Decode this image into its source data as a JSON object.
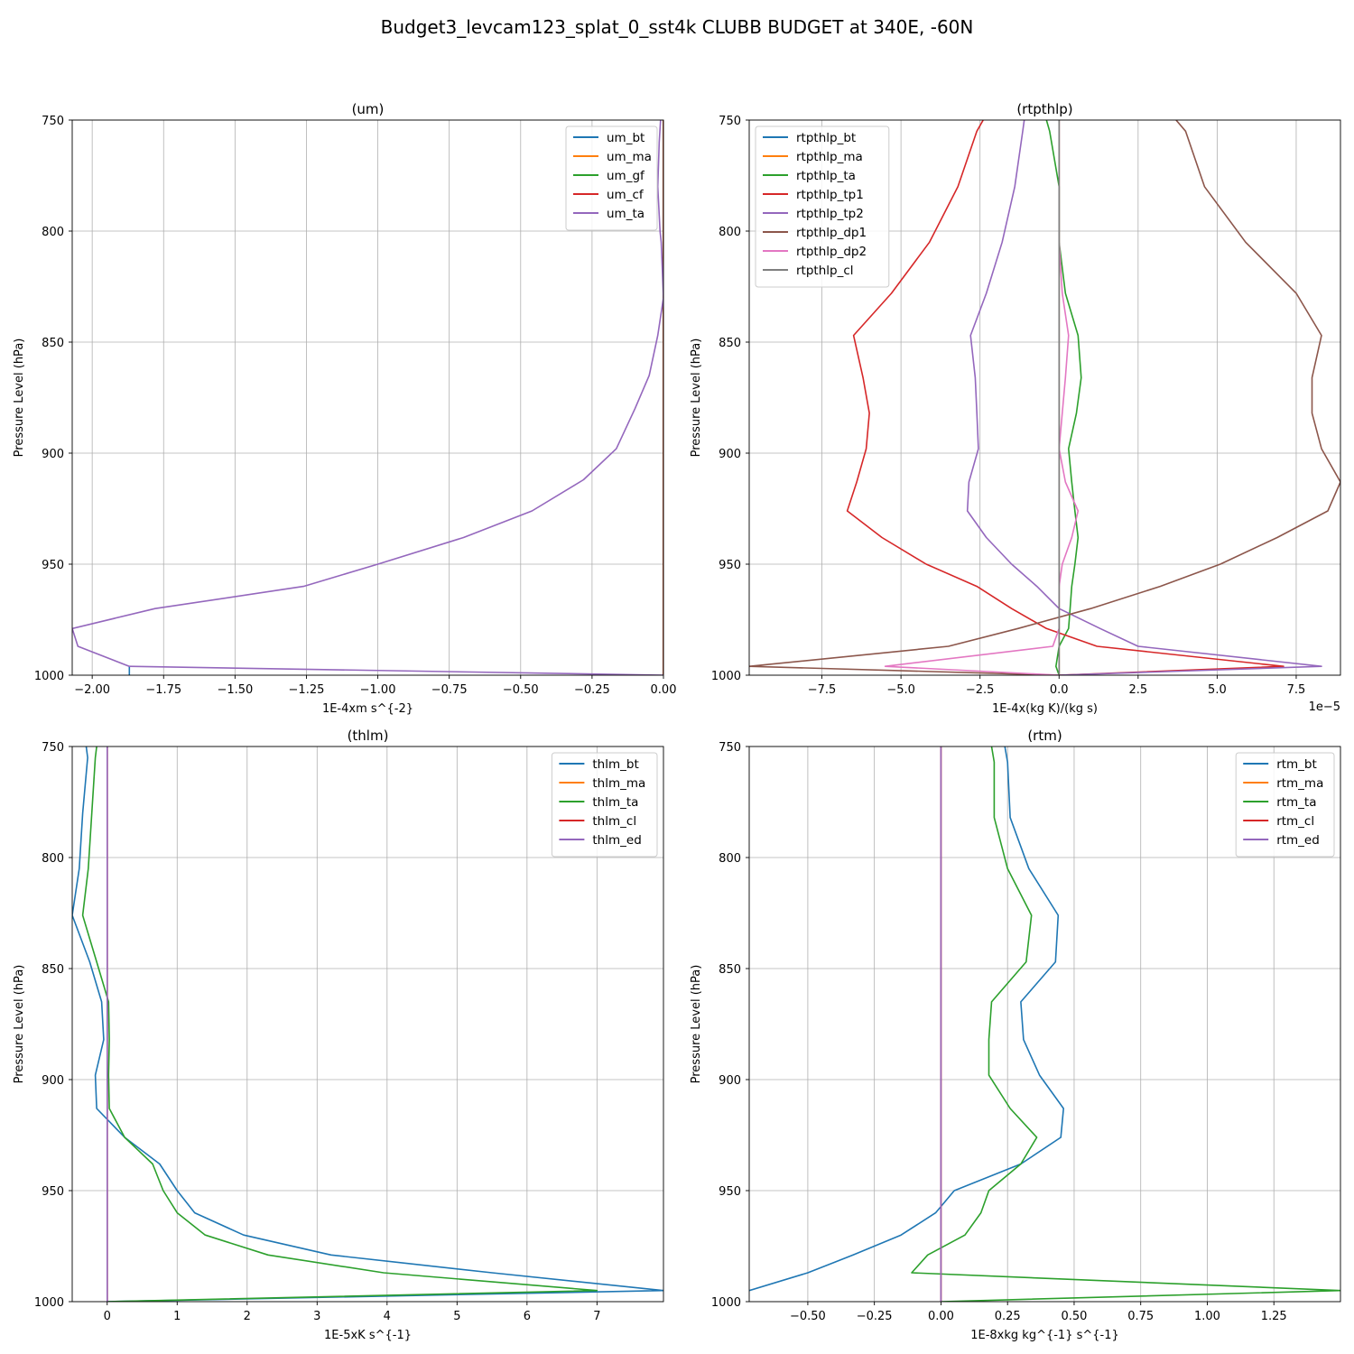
{
  "figure": {
    "suptitle": "Budget3_levcam123_splat_0_sst4k CLUBB BUDGET at 340E, -60N"
  },
  "chart_data": [
    {
      "id": "um",
      "type": "line",
      "title": "(um)",
      "xlabel": "1E-4xm s^{-2}",
      "ylabel": "Pressure Level (hPa)",
      "xlim": [
        -2.07,
        0.0
      ],
      "ylim": [
        1000,
        750
      ],
      "xticks": [
        -2.0,
        -1.75,
        -1.5,
        -1.25,
        -1.0,
        -0.75,
        -0.5,
        -0.25,
        0.0
      ],
      "xtick_labels": [
        "−2.00",
        "−1.75",
        "−1.50",
        "−1.25",
        "−1.00",
        "−0.75",
        "−0.50",
        "−0.25",
        "0.00"
      ],
      "yticks": [
        750,
        800,
        850,
        900,
        950,
        1000
      ],
      "ytick_labels": [
        "750",
        "800",
        "850",
        "900",
        "950",
        "1000"
      ],
      "offset_text": "",
      "grid": true,
      "legend_position": "upper right",
      "levels": [
        750,
        760,
        780,
        800,
        805,
        830,
        847,
        865,
        880,
        898,
        912,
        926,
        938,
        950,
        960,
        970,
        979,
        987,
        996,
        1000
      ],
      "series": [
        {
          "name": "um_bt",
          "color": "#1f77b4",
          "points": [
            [
              -1.87,
              996
            ],
            [
              -1.87,
              1000
            ]
          ]
        },
        {
          "name": "um_ma",
          "color": "#ff7f0e",
          "values": [
            0,
            0,
            0,
            0,
            0,
            0,
            0,
            0,
            0,
            0,
            0,
            0,
            0,
            0,
            0,
            0,
            0,
            0,
            0,
            0
          ]
        },
        {
          "name": "um_gf",
          "color": "#2ca02c",
          "values": [
            0,
            0,
            0,
            0,
            0,
            0,
            0,
            0,
            0,
            0,
            0,
            0,
            0,
            0,
            0,
            0,
            0,
            0,
            0,
            0
          ]
        },
        {
          "name": "um_cf",
          "color": "#d62728",
          "values": [
            0,
            0,
            0,
            0,
            0,
            0,
            0,
            0,
            0,
            0,
            0,
            0,
            0,
            0,
            0,
            0,
            0,
            0,
            0,
            0
          ]
        },
        {
          "name": "um_ta",
          "color": "#9467bd",
          "values": [
            -0.01,
            -0.015,
            -0.02,
            -0.012,
            -0.008,
            0.0,
            -0.02,
            -0.05,
            -0.1,
            -0.165,
            -0.28,
            -0.46,
            -0.7,
            -1.0,
            -1.26,
            -1.78,
            -2.07,
            -2.05,
            -1.87,
            0.0
          ]
        }
      ]
    },
    {
      "id": "rtpthlp",
      "type": "line",
      "title": "(rtpthlp)",
      "xlabel": "1E-4x(kg K)/(kg s)",
      "ylabel": "Pressure Level (hPa)",
      "xlim": [
        -9.8e-05,
        8.9e-05
      ],
      "ylim": [
        1000,
        750
      ],
      "xticks": [
        -7.5e-05,
        -5e-05,
        -2.5e-05,
        0.0,
        2.5e-05,
        5e-05,
        7.5e-05
      ],
      "xtick_labels": [
        "−7.5",
        "−5.0",
        "−2.5",
        "0.0",
        "2.5",
        "5.0",
        "7.5"
      ],
      "yticks": [
        750,
        800,
        850,
        900,
        950,
        1000
      ],
      "ytick_labels": [
        "750",
        "800",
        "850",
        "900",
        "950",
        "1000"
      ],
      "offset_text": "1e−5",
      "grid": true,
      "legend_position": "upper left",
      "levels": [
        750,
        755,
        780,
        805,
        828,
        847,
        866,
        882,
        898,
        913,
        926,
        938,
        950,
        960,
        970,
        979,
        987,
        996,
        1000
      ],
      "series": [
        {
          "name": "rtpthlp_bt",
          "color": "#1f77b4",
          "values": [
            0,
            0,
            0,
            0,
            0,
            0,
            0,
            0,
            0,
            0,
            0,
            0,
            0,
            0,
            0,
            0,
            0,
            0,
            0
          ]
        },
        {
          "name": "rtpthlp_ma",
          "color": "#ff7f0e",
          "values": [
            0,
            0,
            0,
            0,
            0,
            0,
            0,
            0,
            0,
            0,
            0,
            0,
            0,
            0,
            0,
            0,
            0,
            0,
            0
          ]
        },
        {
          "name": "rtpthlp_ta",
          "color": "#2ca02c",
          "values": [
            -4e-06,
            -3e-06,
            0.0,
            0.0,
            2e-06,
            6e-06,
            7e-06,
            5.5e-06,
            3e-06,
            4e-06,
            5e-06,
            6e-06,
            5e-06,
            4e-06,
            3.5e-06,
            3e-06,
            0.0,
            -1e-06,
            0.0
          ]
        },
        {
          "name": "rtpthlp_tp1",
          "color": "#d62728",
          "values": [
            -2.4e-05,
            -2.6e-05,
            -3.2e-05,
            -4.1e-05,
            -5.3e-05,
            -6.5e-05,
            -6.2e-05,
            -6e-05,
            -6.1e-05,
            -6.4e-05,
            -6.7e-05,
            -5.6e-05,
            -4.2e-05,
            -2.6e-05,
            -1.5e-05,
            -4e-06,
            1.2e-05,
            7.1e-05,
            0.0
          ]
        },
        {
          "name": "rtpthlp_tp2",
          "color": "#9467bd",
          "values": [
            -1.1e-05,
            -1.15e-05,
            -1.4e-05,
            -1.8e-05,
            -2.3e-05,
            -2.8e-05,
            -2.65e-05,
            -2.6e-05,
            -2.55e-05,
            -2.85e-05,
            -2.9e-05,
            -2.3e-05,
            -1.5e-05,
            -7e-06,
            0.0,
            1.3e-05,
            2.5e-05,
            8.3e-05,
            0.0
          ]
        },
        {
          "name": "rtpthlp_dp1",
          "color": "#8c564b",
          "values": [
            3.7e-05,
            4e-05,
            4.6e-05,
            5.9e-05,
            7.5e-05,
            8.3e-05,
            8e-05,
            8e-05,
            8.3e-05,
            8.9e-05,
            8.5e-05,
            6.9e-05,
            5.1e-05,
            3.2e-05,
            1e-05,
            -1.3e-05,
            -3.5e-05,
            -9.8e-05,
            0.0
          ]
        },
        {
          "name": "rtpthlp_dp2",
          "color": "#e377c2",
          "values": [
            0,
            0,
            0,
            0,
            1e-06,
            3e-06,
            2e-06,
            1e-06,
            0.0,
            2e-06,
            6e-06,
            4e-06,
            1e-06,
            0.0,
            0.0,
            0.0,
            -2e-06,
            -5.5e-05,
            0.0
          ]
        },
        {
          "name": "rtpthlp_cl",
          "color": "#7f7f7f",
          "values": [
            0,
            0,
            0,
            0,
            0,
            0,
            0,
            0,
            0,
            0,
            0,
            0,
            0,
            0,
            0,
            0,
            0,
            0,
            0
          ]
        }
      ]
    },
    {
      "id": "thlm",
      "type": "line",
      "title": "(thlm)",
      "xlabel": "1E-5xK s^{-1}",
      "ylabel": "Pressure Level (hPa)",
      "xlim": [
        -0.5,
        7.95
      ],
      "ylim": [
        1000,
        750
      ],
      "xticks": [
        0,
        1,
        2,
        3,
        4,
        5,
        6,
        7
      ],
      "xtick_labels": [
        "0",
        "1",
        "2",
        "3",
        "4",
        "5",
        "6",
        "7"
      ],
      "yticks": [
        750,
        800,
        850,
        900,
        950,
        1000
      ],
      "ytick_labels": [
        "750",
        "800",
        "850",
        "900",
        "950",
        "1000"
      ],
      "offset_text": "",
      "grid": true,
      "legend_position": "upper right",
      "levels": [
        750,
        755,
        780,
        805,
        826,
        847,
        865,
        882,
        898,
        913,
        926,
        938,
        950,
        960,
        970,
        979,
        987,
        995,
        1000
      ],
      "series": [
        {
          "name": "thlm_bt",
          "color": "#1f77b4",
          "values": [
            -0.3,
            -0.28,
            -0.35,
            -0.4,
            -0.5,
            -0.25,
            -0.08,
            -0.05,
            -0.17,
            -0.15,
            0.25,
            0.75,
            1.0,
            1.25,
            1.95,
            3.2,
            5.5,
            7.95,
            0.0
          ]
        },
        {
          "name": "thlm_ma",
          "color": "#ff7f0e",
          "values": [
            0,
            0,
            0,
            0,
            0,
            0,
            0,
            0,
            0,
            0,
            0,
            0,
            0,
            0,
            0,
            0,
            0,
            0,
            0
          ]
        },
        {
          "name": "thlm_ta",
          "color": "#2ca02c",
          "values": [
            -0.15,
            -0.17,
            -0.22,
            -0.27,
            -0.35,
            -0.15,
            0.02,
            0.03,
            0.02,
            0.03,
            0.25,
            0.65,
            0.8,
            1.0,
            1.4,
            2.3,
            3.95,
            7.0,
            0.0
          ]
        },
        {
          "name": "thlm_cl",
          "color": "#d62728",
          "values": [
            0,
            0,
            0,
            0,
            0,
            0,
            0,
            0,
            0,
            0,
            0,
            0,
            0,
            0,
            0,
            0,
            0,
            0,
            0
          ]
        },
        {
          "name": "thlm_ed",
          "color": "#9467bd",
          "values": [
            0,
            0,
            0,
            0,
            0,
            0,
            0,
            0,
            0,
            0,
            0,
            0,
            0,
            0,
            0,
            0,
            0,
            0,
            0
          ]
        }
      ]
    },
    {
      "id": "rtm",
      "type": "line",
      "title": "(rtm)",
      "xlabel": "1E-8xkg kg^{-1} s^{-1}",
      "ylabel": "Pressure Level (hPa)",
      "xlim": [
        -0.72,
        1.5
      ],
      "ylim": [
        1000,
        750
      ],
      "xticks": [
        -0.5,
        -0.25,
        0.0,
        0.25,
        0.5,
        0.75,
        1.0,
        1.25
      ],
      "xtick_labels": [
        "−0.50",
        "−0.25",
        "0.00",
        "0.25",
        "0.50",
        "0.75",
        "1.00",
        "1.25"
      ],
      "yticks": [
        750,
        800,
        850,
        900,
        950,
        1000
      ],
      "ytick_labels": [
        "750",
        "800",
        "850",
        "900",
        "950",
        "1000"
      ],
      "offset_text": "",
      "grid": true,
      "legend_position": "upper right",
      "levels": [
        750,
        757,
        782,
        805,
        826,
        847,
        865,
        882,
        898,
        913,
        926,
        938,
        950,
        960,
        970,
        979,
        987,
        995,
        1000
      ],
      "series": [
        {
          "name": "rtm_bt",
          "color": "#1f77b4",
          "values": [
            0.24,
            0.25,
            0.26,
            0.33,
            0.44,
            0.43,
            0.3,
            0.31,
            0.37,
            0.46,
            0.45,
            0.3,
            0.05,
            -0.02,
            -0.15,
            -0.33,
            -0.5,
            -0.72,
            null
          ]
        },
        {
          "name": "rtm_ma",
          "color": "#ff7f0e",
          "values": [
            0,
            0,
            0,
            0,
            0,
            0,
            0,
            0,
            0,
            0,
            0,
            0,
            0,
            0,
            0,
            0,
            0,
            0,
            0
          ]
        },
        {
          "name": "rtm_ta",
          "color": "#2ca02c",
          "values": [
            0.19,
            0.2,
            0.2,
            0.25,
            0.34,
            0.32,
            0.19,
            0.18,
            0.18,
            0.26,
            0.36,
            0.3,
            0.18,
            0.15,
            0.09,
            -0.05,
            -0.11,
            1.5,
            0.0
          ]
        },
        {
          "name": "rtm_cl",
          "color": "#d62728",
          "values": [
            0,
            0,
            0,
            0,
            0,
            0,
            0,
            0,
            0,
            0,
            0,
            0,
            0,
            0,
            0,
            0,
            0,
            0,
            0
          ]
        },
        {
          "name": "rtm_ed",
          "color": "#9467bd",
          "values": [
            0,
            0,
            0,
            0,
            0,
            0,
            0,
            0,
            0,
            0,
            0,
            0,
            0,
            0,
            0,
            0,
            0,
            0,
            0
          ]
        }
      ]
    }
  ]
}
